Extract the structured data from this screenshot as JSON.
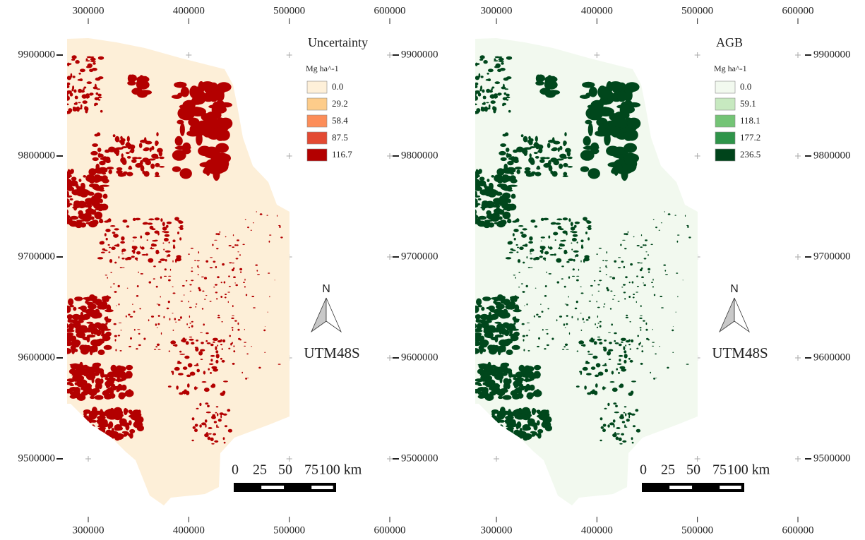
{
  "panels": [
    {
      "legend": {
        "title": "Uncertainty",
        "unit": "Mg ha^-1",
        "items": [
          {
            "label": "0.0",
            "color": "#fef0d9"
          },
          {
            "label": "29.2",
            "color": "#fdcc8a"
          },
          {
            "label": "58.4",
            "color": "#fc8d59"
          },
          {
            "label": "87.5",
            "color": "#e34a33"
          },
          {
            "label": "116.7",
            "color": "#b30000"
          }
        ]
      },
      "land_color": "#fdefd8",
      "patch_color": "#b30000",
      "xlim": [
        300000,
        600000
      ],
      "ylim": [
        9500000,
        9900000
      ],
      "xticks": [
        300000,
        400000,
        500000,
        600000
      ],
      "yticks": [
        9900000,
        9800000,
        9700000,
        9600000,
        9500000
      ],
      "north": "N",
      "crs": "UTM48S",
      "scale_bar": [
        "0",
        "25",
        "50",
        "75",
        "100 km"
      ]
    },
    {
      "legend": {
        "title": "AGB",
        "unit": "Mg ha^-1",
        "items": [
          {
            "label": "0.0",
            "color": "#f2f9ef"
          },
          {
            "label": "59.1",
            "color": "#c7e9c0"
          },
          {
            "label": "118.1",
            "color": "#74c476"
          },
          {
            "label": "177.2",
            "color": "#2f944a"
          },
          {
            "label": "236.5",
            "color": "#00441b"
          }
        ]
      },
      "land_color": "#f2f9ef",
      "patch_color": "#00471c",
      "xlim": [
        300000,
        600000
      ],
      "ylim": [
        9500000,
        9900000
      ],
      "xticks": [
        300000,
        400000,
        500000,
        600000
      ],
      "yticks": [
        9900000,
        9800000,
        9700000,
        9600000,
        9500000
      ],
      "north": "N",
      "crs": "UTM48S",
      "scale_bar": [
        "0",
        "25",
        "50",
        "75",
        "100 km"
      ]
    }
  ]
}
